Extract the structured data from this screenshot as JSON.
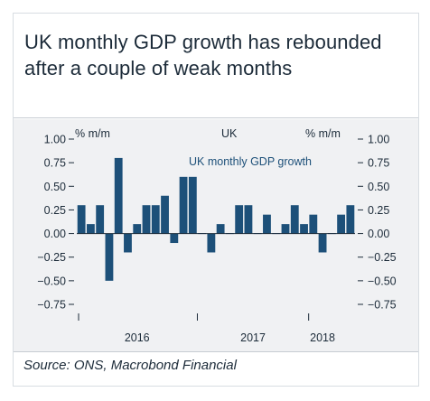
{
  "header": {
    "title": "UK monthly GDP growth has rebounded after a couple of weak months"
  },
  "footer": {
    "source": "Source: ONS, Macrobond Financial"
  },
  "colors": {
    "bar": "#1d5079",
    "text": "#1c2b39",
    "series_label": "#1d5079"
  },
  "chart_data": {
    "type": "bar",
    "panel_title": "UK",
    "y_unit_left": "% m/m",
    "y_unit_right": "% m/m",
    "ylim": [
      -0.75,
      1.0
    ],
    "yticks": [
      "1.00",
      "0.75",
      "0.50",
      "0.25",
      "0.00",
      "−0.25",
      "−0.50",
      "−0.75"
    ],
    "ytick_values": [
      1.0,
      0.75,
      0.5,
      0.25,
      0.0,
      -0.25,
      -0.5,
      -0.75
    ],
    "year_labels": [
      {
        "label": "2016",
        "at_index": 6.5
      },
      {
        "label": "2017",
        "at_index": 19
      },
      {
        "label": "2018",
        "at_index": 26.5
      }
    ],
    "year_separators_before_index": [
      0,
      13,
      25
    ],
    "series": [
      {
        "name": "UK monthly GDP growth",
        "values": [
          0.3,
          0.1,
          0.3,
          -0.5,
          0.8,
          -0.2,
          0.1,
          0.3,
          0.3,
          0.4,
          -0.1,
          0.6,
          0.6,
          0.0,
          -0.2,
          0.1,
          0.0,
          0.3,
          0.3,
          0.0,
          0.2,
          0.0,
          0.1,
          0.3,
          0.1,
          0.2,
          -0.2,
          0.0,
          0.2,
          0.3
        ]
      }
    ],
    "grid": false,
    "legend": "inline-top"
  }
}
